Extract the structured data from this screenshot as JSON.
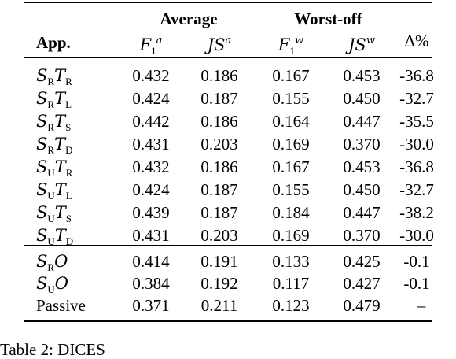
{
  "header": {
    "group_average": "Average",
    "group_worst": "Worst-off",
    "col_app": "App.",
    "col_f1a": "F",
    "col_f1a_sub": "1",
    "col_f1a_sup": "a",
    "col_jsa": "JS",
    "col_jsa_sup": "a",
    "col_f1w": "F",
    "col_f1w_sub": "1",
    "col_f1w_sup": "w",
    "col_jsw": "JS",
    "col_jsw_sup": "w",
    "col_delta": "Δ%"
  },
  "rows": [
    {
      "s": "S",
      "s_sub": "R",
      "t": "T",
      "t_sub": "R",
      "f1a": "0.432",
      "jsa": "0.186",
      "f1w": "0.167",
      "jsw": "0.453",
      "delta": "-36.8"
    },
    {
      "s": "S",
      "s_sub": "R",
      "t": "T",
      "t_sub": "L",
      "f1a": "0.424",
      "jsa": "0.187",
      "f1w": "0.155",
      "jsw": "0.450",
      "delta": "-32.7"
    },
    {
      "s": "S",
      "s_sub": "R",
      "t": "T",
      "t_sub": "S",
      "f1a": "0.442",
      "jsa": "0.186",
      "f1w": "0.164",
      "jsw": "0.447",
      "delta": "-35.5"
    },
    {
      "s": "S",
      "s_sub": "R",
      "t": "T",
      "t_sub": "D",
      "f1a": "0.431",
      "jsa": "0.203",
      "f1w": "0.169",
      "jsw": "0.370",
      "delta": "-30.0"
    },
    {
      "s": "S",
      "s_sub": "U",
      "t": "T",
      "t_sub": "R",
      "f1a": "0.432",
      "jsa": "0.186",
      "f1w": "0.167",
      "jsw": "0.453",
      "delta": "-36.8"
    },
    {
      "s": "S",
      "s_sub": "U",
      "t": "T",
      "t_sub": "L",
      "f1a": "0.424",
      "jsa": "0.187",
      "f1w": "0.155",
      "jsw": "0.450",
      "delta": "-32.7"
    },
    {
      "s": "S",
      "s_sub": "U",
      "t": "T",
      "t_sub": "S",
      "f1a": "0.439",
      "jsa": "0.187",
      "f1w": "0.184",
      "jsw": "0.447",
      "delta": "-38.2"
    },
    {
      "s": "S",
      "s_sub": "U",
      "t": "T",
      "t_sub": "D",
      "f1a": "0.431",
      "jsa": "0.203",
      "f1w": "0.169",
      "jsw": "0.370",
      "delta": "-30.0"
    }
  ],
  "rows_b": [
    {
      "s": "S",
      "s_sub": "R",
      "o": "O",
      "f1a": "0.414",
      "jsa": "0.191",
      "f1w": "0.133",
      "jsw": "0.425",
      "delta": "-0.1"
    },
    {
      "s": "S",
      "s_sub": "U",
      "o": "O",
      "f1a": "0.384",
      "jsa": "0.192",
      "f1w": "0.117",
      "jsw": "0.427",
      "delta": "-0.1"
    }
  ],
  "passive": {
    "label": "Passive",
    "f1a": "0.371",
    "jsa": "0.211",
    "f1w": "0.123",
    "jsw": "0.479",
    "delta": "–"
  },
  "caption": "Table 2: DICES"
}
